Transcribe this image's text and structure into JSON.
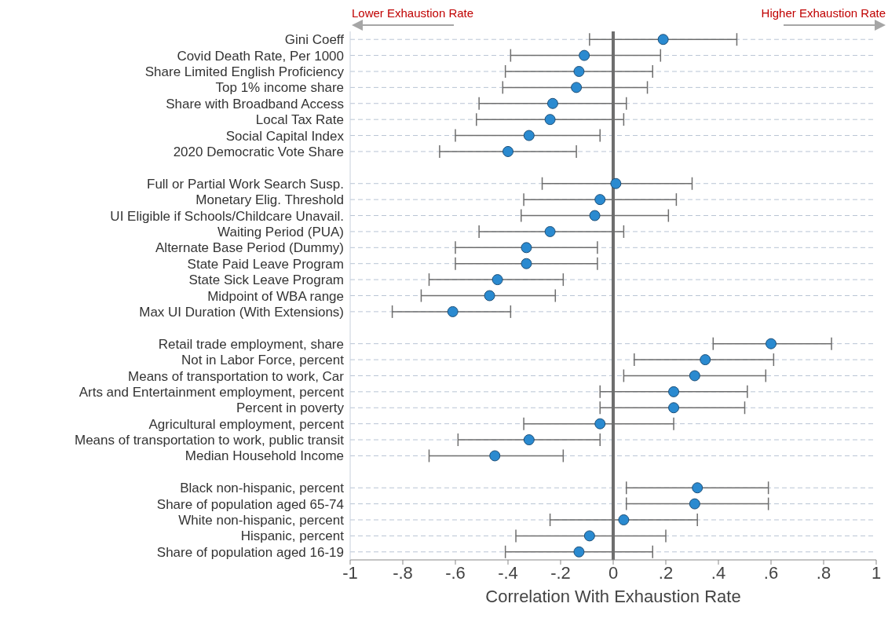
{
  "chart_data": {
    "type": "scatter",
    "orientation": "horizontal",
    "xlabel": "Correlation With Exhaustion Rate",
    "annotations": [
      "Lower Exhaustion Rate",
      "Higher Exhaustion Rate"
    ],
    "categories": [
      "Gini Coeff",
      "Covid Death Rate, Per 1000",
      "Share Limited English Proficiency",
      "Top 1% income share",
      "Share with Broadband Access",
      "Local Tax Rate",
      "Social Capital Index",
      "2020 Democratic Vote Share",
      null,
      "Full or Partial Work Search Susp.",
      "Monetary Elig. Threshold",
      "UI Eligible if Schools/Childcare Unavail.",
      "Waiting Period (PUA)",
      "Alternate Base Period (Dummy)",
      "State Paid Leave Program",
      "State Sick Leave Program",
      "Midpoint of WBA range",
      "Max UI Duration (With Extensions)",
      null,
      "Retail trade employment, share",
      "Not in Labor Force, percent",
      "Means of transportation to work, Car",
      "Arts and Entertainment employment, percent",
      "Percent in poverty",
      "Agricultural employment, percent",
      "Means of transportation to work, public transit",
      "Median Household Income",
      null,
      "Black non-hispanic, percent",
      "Share of population aged 65-74",
      "White non-hispanic, percent",
      "Hispanic, percent",
      "Share of population aged 16-19"
    ],
    "values": [
      0.19,
      -0.11,
      -0.13,
      -0.14,
      -0.23,
      -0.24,
      -0.32,
      -0.4,
      null,
      0.01,
      -0.05,
      -0.07,
      -0.24,
      -0.33,
      -0.33,
      -0.44,
      -0.47,
      -0.61,
      null,
      0.6,
      0.35,
      0.31,
      0.23,
      0.23,
      -0.05,
      -0.32,
      -0.45,
      null,
      0.32,
      0.31,
      0.04,
      -0.09,
      -0.13
    ],
    "errors": [
      [
        -0.09,
        0.47
      ],
      [
        -0.39,
        0.18
      ],
      [
        -0.41,
        0.15
      ],
      [
        -0.42,
        0.13
      ],
      [
        -0.51,
        0.05
      ],
      [
        -0.52,
        0.04
      ],
      [
        -0.6,
        -0.05
      ],
      [
        -0.66,
        -0.14
      ],
      null,
      [
        -0.27,
        0.3
      ],
      [
        -0.34,
        0.24
      ],
      [
        -0.35,
        0.21
      ],
      [
        -0.51,
        0.04
      ],
      [
        -0.6,
        -0.06
      ],
      [
        -0.6,
        -0.06
      ],
      [
        -0.7,
        -0.19
      ],
      [
        -0.73,
        -0.22
      ],
      [
        -0.84,
        -0.39
      ],
      null,
      [
        0.38,
        0.83
      ],
      [
        0.08,
        0.61
      ],
      [
        0.04,
        0.58
      ],
      [
        -0.05,
        0.51
      ],
      [
        -0.05,
        0.5
      ],
      [
        -0.34,
        0.23
      ],
      [
        -0.59,
        -0.05
      ],
      [
        -0.7,
        -0.19
      ],
      null,
      [
        0.05,
        0.59
      ],
      [
        0.05,
        0.59
      ],
      [
        -0.24,
        0.32
      ],
      [
        -0.37,
        0.2
      ],
      [
        -0.41,
        0.15
      ]
    ],
    "color": "#2a8ad0",
    "marker": "circle",
    "grid": "y",
    "xlim": [
      -1,
      1
    ],
    "xticks": [
      {
        "value": -1,
        "label": "-1"
      },
      {
        "value": -0.8,
        "label": "-.8"
      },
      {
        "value": -0.6,
        "label": "-.6"
      },
      {
        "value": -0.4,
        "label": "-.4"
      },
      {
        "value": -0.2,
        "label": "-.2"
      },
      0,
      {
        "value": 0.2,
        "label": ".2"
      },
      {
        "value": 0.4,
        "label": ".4"
      },
      {
        "value": 0.6,
        "label": ".6"
      },
      {
        "value": 0.8,
        "label": ".8"
      },
      1
    ],
    "ref_lines": [
      {
        "axis": "x",
        "value": 0,
        "color": "#6e6e6e"
      }
    ]
  }
}
